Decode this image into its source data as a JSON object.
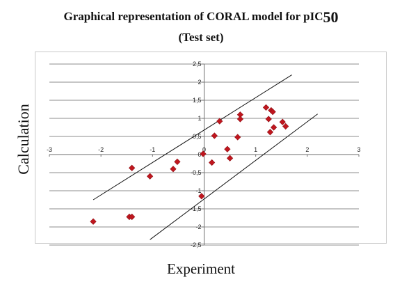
{
  "chart_data": {
    "type": "scatter",
    "title_line1": "Graphical representation of CORAL model  for pIC",
    "title_sub": "50",
    "title_line2": "(Test set)",
    "xlabel": "Experiment",
    "ylabel": "Calculation",
    "xlim": [
      -3,
      3
    ],
    "ylim": [
      -2.5,
      2.5
    ],
    "x_ticks": [
      "-3",
      "-2",
      "-1",
      "0",
      "1",
      "2",
      "3"
    ],
    "y_ticks": [
      "2,5",
      "2",
      "1,5",
      "1",
      "0,5",
      "0",
      "-0,5",
      "-1",
      "-1,5",
      "-2",
      "-2,5"
    ],
    "grid": "horizontal",
    "marker_color": "#c0161e",
    "points": [
      {
        "x": -2.15,
        "y": -1.85
      },
      {
        "x": -1.45,
        "y": -1.72
      },
      {
        "x": -1.4,
        "y": -1.72
      },
      {
        "x": -1.4,
        "y": -0.37
      },
      {
        "x": -1.05,
        "y": -0.6
      },
      {
        "x": -0.6,
        "y": -0.4
      },
      {
        "x": -0.52,
        "y": -0.2
      },
      {
        "x": -0.02,
        "y": 0.02
      },
      {
        "x": -0.05,
        "y": -1.15
      },
      {
        "x": 0.15,
        "y": -0.22
      },
      {
        "x": 0.2,
        "y": 0.52
      },
      {
        "x": 0.3,
        "y": 0.92
      },
      {
        "x": 0.45,
        "y": 0.15
      },
      {
        "x": 0.5,
        "y": -0.1
      },
      {
        "x": 0.65,
        "y": 0.48
      },
      {
        "x": 0.7,
        "y": 1.1
      },
      {
        "x": 0.7,
        "y": 0.98
      },
      {
        "x": 1.2,
        "y": 1.3
      },
      {
        "x": 1.3,
        "y": 1.22
      },
      {
        "x": 1.33,
        "y": 1.18
      },
      {
        "x": 1.25,
        "y": 0.98
      },
      {
        "x": 1.35,
        "y": 0.75
      },
      {
        "x": 1.28,
        "y": 0.62
      },
      {
        "x": 1.52,
        "y": 0.9
      },
      {
        "x": 1.58,
        "y": 0.78
      }
    ],
    "lines": [
      {
        "x": [
          -2.15,
          1.7
        ],
        "y": [
          -1.25,
          2.2
        ]
      },
      {
        "x": [
          -1.05,
          2.2
        ],
        "y": [
          -2.35,
          1.12
        ]
      }
    ]
  }
}
